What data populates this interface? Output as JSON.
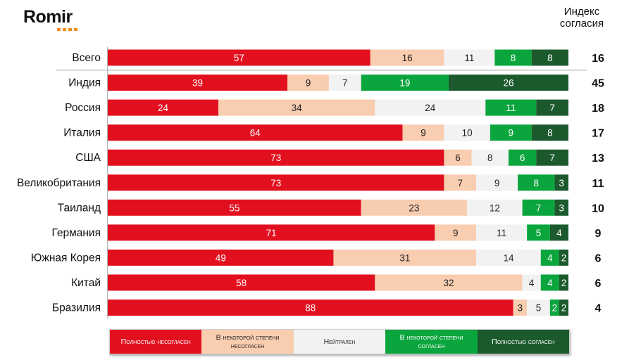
{
  "header": {
    "brand": "Romir",
    "index_title_line1": "Индекс",
    "index_title_line2": "согласия"
  },
  "chart_data": {
    "type": "bar",
    "orientation": "horizontal",
    "stacked": true,
    "normalized": "percent",
    "categories": [
      "Всего",
      "Индия",
      "Россия",
      "Италия",
      "США",
      "Великобритания",
      "Таиланд",
      "Германия",
      "Южная Корея",
      "Китай",
      "Бразилия"
    ],
    "series": [
      {
        "name": "Полностью несогласен",
        "color": "#e2101f",
        "values": [
          57,
          39,
          24,
          64,
          73,
          73,
          55,
          71,
          49,
          58,
          88
        ]
      },
      {
        "name": "В некоторой степени несогласен",
        "color": "#f8cdb0",
        "values": [
          16,
          9,
          34,
          9,
          6,
          7,
          23,
          9,
          31,
          32,
          3
        ]
      },
      {
        "name": "Нейтрален",
        "color": "#f2f2f2",
        "values": [
          11,
          7,
          24,
          10,
          8,
          9,
          12,
          11,
          14,
          4,
          5
        ]
      },
      {
        "name": "В некоторой степени согласен",
        "color": "#0aa53c",
        "values": [
          8,
          19,
          11,
          9,
          6,
          8,
          7,
          5,
          4,
          4,
          2
        ]
      },
      {
        "name": "Полностью согласен",
        "color": "#1c5a2d",
        "values": [
          8,
          26,
          7,
          8,
          7,
          3,
          3,
          4,
          2,
          2,
          2
        ]
      }
    ],
    "index_values": [
      16,
      45,
      18,
      17,
      13,
      11,
      10,
      9,
      6,
      6,
      4
    ],
    "legend_position": "bottom",
    "grid": false
  }
}
